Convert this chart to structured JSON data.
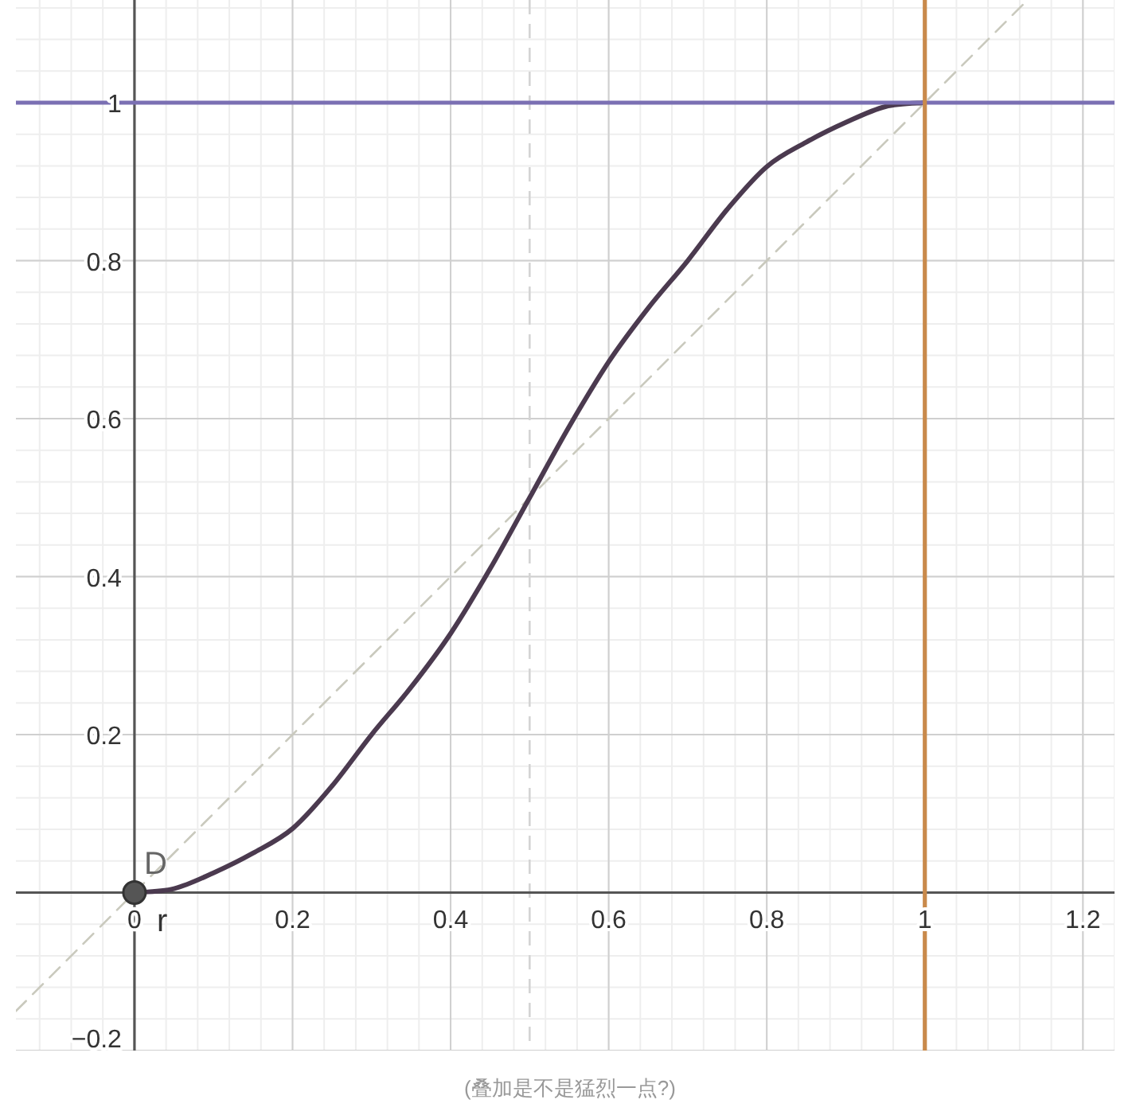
{
  "chart_data": {
    "type": "line",
    "annotations": [
      "(叠加是不是猛烈一点?)"
    ],
    "xlim": [
      -0.15,
      1.24
    ],
    "ylim": [
      -0.2,
      1.13
    ],
    "xticks": [
      0,
      0.2,
      0.4,
      0.6,
      0.8,
      1,
      1.2
    ],
    "yticks": [
      -0.2,
      0.2,
      0.4,
      0.6,
      0.8,
      1
    ],
    "grid": true,
    "series": [
      {
        "name": "r",
        "color": "#4b3a4f",
        "x": [
          0,
          0.05,
          0.1,
          0.15,
          0.2,
          0.25,
          0.3,
          0.35,
          0.4,
          0.45,
          0.5,
          0.55,
          0.6,
          0.65,
          0.7,
          0.75,
          0.8,
          0.85,
          0.9,
          0.95,
          1
        ],
        "values": [
          0,
          0.005,
          0.025,
          0.05,
          0.081,
          0.135,
          0.2,
          0.26,
          0.328,
          0.41,
          0.5,
          0.59,
          0.672,
          0.74,
          0.8,
          0.865,
          0.919,
          0.95,
          0.975,
          0.995,
          1
        ]
      },
      {
        "color": "#c9c9bd",
        "line_style": "dashed",
        "x": [
          -0.15,
          1.13
        ],
        "values": [
          -0.15,
          1.13
        ]
      },
      {
        "name": "D",
        "type": "scatter",
        "marker": "circle",
        "color": "#555555",
        "x": [
          0
        ],
        "values": [
          0
        ]
      }
    ],
    "ref_lines": [
      {
        "axis": "x",
        "value": 0.5,
        "color": "#d4d4d4",
        "line_style": "dashed"
      },
      {
        "axis": "y",
        "value": 1,
        "color": "#7b70b3"
      },
      {
        "axis": "x",
        "value": 1,
        "color": "#c98a4b"
      }
    ]
  }
}
